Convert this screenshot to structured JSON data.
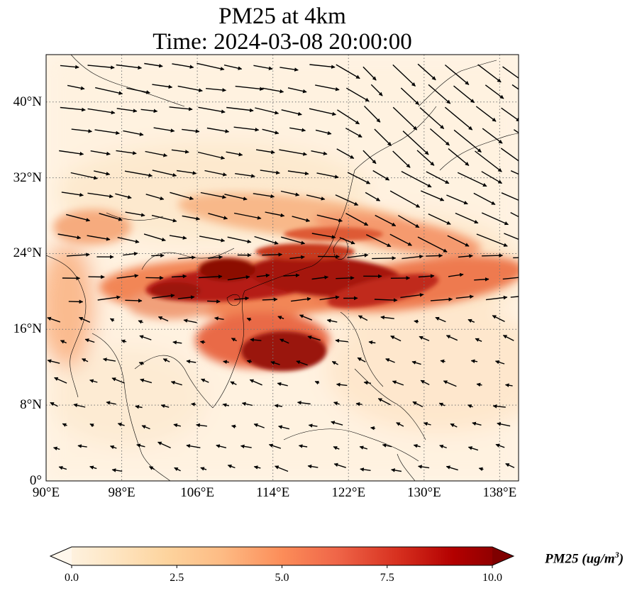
{
  "title": {
    "line1": "PM25 at 4km",
    "line2": "Time: 2024-03-08 20:00:00"
  },
  "map": {
    "lon_range": [
      90,
      140
    ],
    "lat_range": [
      0,
      45
    ],
    "lat_ticks": [
      {
        "value": 0,
        "label": "0°"
      },
      {
        "value": 8,
        "label": "8°N"
      },
      {
        "value": 16,
        "label": "16°N"
      },
      {
        "value": 24,
        "label": "24°N"
      },
      {
        "value": 32,
        "label": "32°N"
      },
      {
        "value": 40,
        "label": "40°N"
      }
    ],
    "lon_ticks": [
      {
        "value": 90,
        "label": "90°E"
      },
      {
        "value": 98,
        "label": "98°E"
      },
      {
        "value": 106,
        "label": "106°E"
      },
      {
        "value": 114,
        "label": "114°E"
      },
      {
        "value": 122,
        "label": "122°E"
      },
      {
        "value": 130,
        "label": "130°E"
      },
      {
        "value": 138,
        "label": "138°E"
      }
    ],
    "gridlines": "dotted"
  },
  "colorbar": {
    "ticks": [
      "0.0",
      "2.5",
      "5.0",
      "7.5",
      "10.0"
    ],
    "tick_values": [
      0,
      2.5,
      5,
      7.5,
      10
    ],
    "range": [
      0,
      10
    ],
    "extend": "both",
    "colormap": "OrRd",
    "label_text": "PM25 (ug/m",
    "label_sup": "3",
    "label_close": ")"
  },
  "colors": {
    "low": "#fff7ec",
    "mid": "#fc8d59",
    "high": "#7f0000"
  }
}
